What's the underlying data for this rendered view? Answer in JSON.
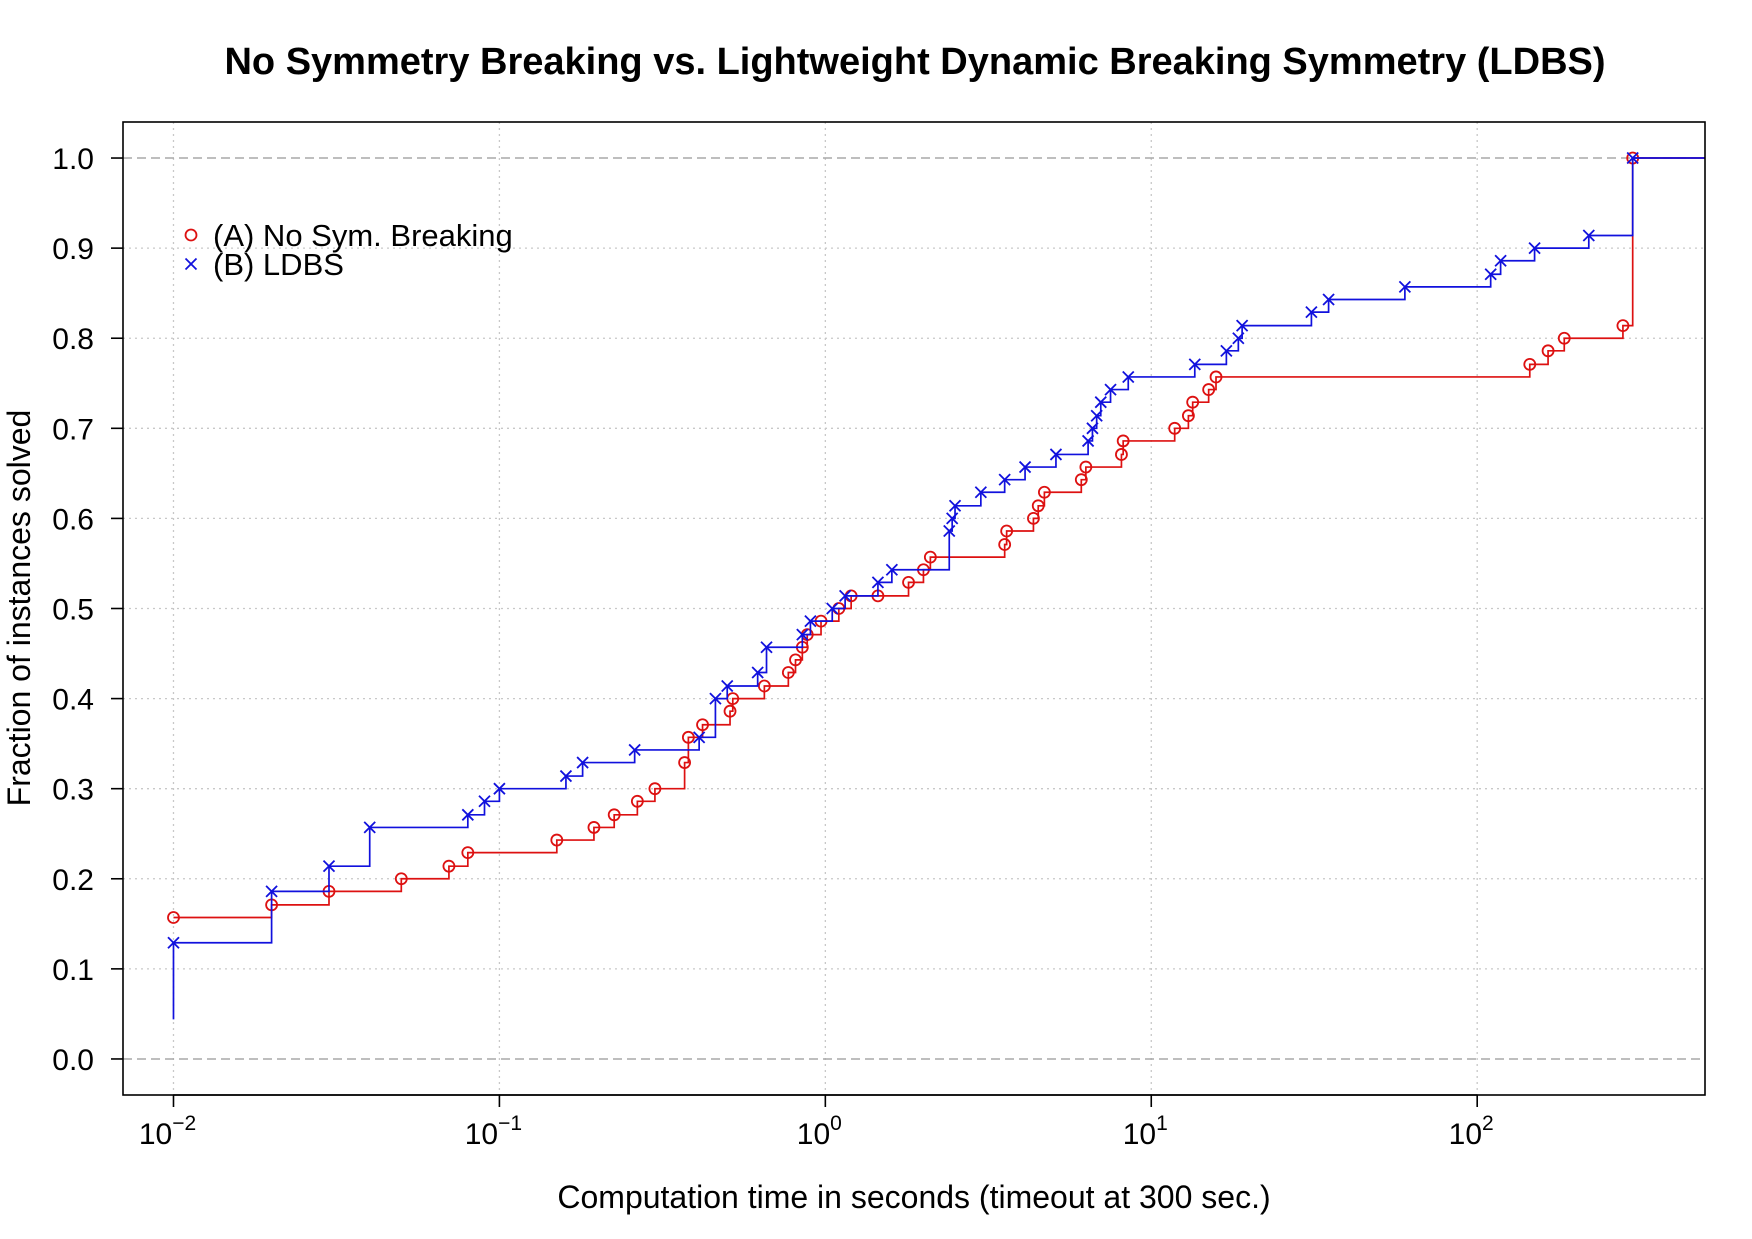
{
  "chart_data": {
    "type": "line",
    "title": "No Symmetry Breaking vs. Lightweight Dynamic Breaking Symmetry (LDBS)",
    "xlabel": "Computation time in seconds (timeout at 300 sec.)",
    "ylabel": "Fraction of instances solved",
    "xscale": "log",
    "xlim": [
      0.007,
      500
    ],
    "ylim": [
      -0.04,
      1.04
    ],
    "x_ticks": [
      {
        "value": 0.01,
        "base": "10",
        "exp": "−2"
      },
      {
        "value": 0.1,
        "base": "10",
        "exp": "−1"
      },
      {
        "value": 1,
        "base": "10",
        "exp": "0"
      },
      {
        "value": 10,
        "base": "10",
        "exp": "1"
      },
      {
        "value": 100,
        "base": "10",
        "exp": "2"
      }
    ],
    "y_ticks": [
      "0.0",
      "0.1",
      "0.2",
      "0.3",
      "0.4",
      "0.5",
      "0.6",
      "0.7",
      "0.8",
      "0.9",
      "1.0"
    ],
    "grid": true,
    "legend_position": "top-left",
    "series": [
      {
        "name": "(A) No Sym. Breaking",
        "marker": "circle",
        "color": "#dd1111",
        "points": [
          [
            0.01,
            0.157
          ],
          [
            0.02,
            0.171
          ],
          [
            0.03,
            0.186
          ],
          [
            0.05,
            0.2
          ],
          [
            0.07,
            0.214
          ],
          [
            0.08,
            0.229
          ],
          [
            0.15,
            0.243
          ],
          [
            0.195,
            0.257
          ],
          [
            0.225,
            0.271
          ],
          [
            0.265,
            0.286
          ],
          [
            0.3,
            0.3
          ],
          [
            0.37,
            0.329
          ],
          [
            0.38,
            0.357
          ],
          [
            0.42,
            0.371
          ],
          [
            0.51,
            0.386
          ],
          [
            0.52,
            0.4
          ],
          [
            0.65,
            0.414
          ],
          [
            0.77,
            0.429
          ],
          [
            0.81,
            0.443
          ],
          [
            0.85,
            0.457
          ],
          [
            0.88,
            0.471
          ],
          [
            0.97,
            0.486
          ],
          [
            1.1,
            0.5
          ],
          [
            1.2,
            0.514
          ],
          [
            1.45,
            0.514
          ],
          [
            1.8,
            0.529
          ],
          [
            2.0,
            0.543
          ],
          [
            2.1,
            0.557
          ],
          [
            3.55,
            0.571
          ],
          [
            3.6,
            0.586
          ],
          [
            4.35,
            0.6
          ],
          [
            4.5,
            0.614
          ],
          [
            4.7,
            0.629
          ],
          [
            6.1,
            0.643
          ],
          [
            6.3,
            0.657
          ],
          [
            8.1,
            0.671
          ],
          [
            8.2,
            0.686
          ],
          [
            11.8,
            0.7
          ],
          [
            13.0,
            0.714
          ],
          [
            13.4,
            0.729
          ],
          [
            15.0,
            0.743
          ],
          [
            15.8,
            0.757
          ],
          [
            145,
            0.771
          ],
          [
            165,
            0.786
          ],
          [
            185,
            0.8
          ],
          [
            280,
            0.814
          ],
          [
            300,
            1.0
          ]
        ]
      },
      {
        "name": "(B) LDBS",
        "marker": "cross",
        "color": "#1111dd",
        "points": [
          [
            0.01,
            0.129
          ],
          [
            0.02,
            0.186
          ],
          [
            0.03,
            0.214
          ],
          [
            0.04,
            0.257
          ],
          [
            0.08,
            0.271
          ],
          [
            0.09,
            0.286
          ],
          [
            0.1,
            0.3
          ],
          [
            0.16,
            0.314
          ],
          [
            0.18,
            0.329
          ],
          [
            0.26,
            0.343
          ],
          [
            0.41,
            0.357
          ],
          [
            0.46,
            0.4
          ],
          [
            0.5,
            0.414
          ],
          [
            0.62,
            0.429
          ],
          [
            0.66,
            0.457
          ],
          [
            0.85,
            0.471
          ],
          [
            0.9,
            0.486
          ],
          [
            1.05,
            0.5
          ],
          [
            1.15,
            0.514
          ],
          [
            1.45,
            0.529
          ],
          [
            1.6,
            0.543
          ],
          [
            2.4,
            0.586
          ],
          [
            2.45,
            0.6
          ],
          [
            2.5,
            0.614
          ],
          [
            3.0,
            0.629
          ],
          [
            3.55,
            0.643
          ],
          [
            4.1,
            0.657
          ],
          [
            5.1,
            0.671
          ],
          [
            6.4,
            0.686
          ],
          [
            6.6,
            0.7
          ],
          [
            6.8,
            0.714
          ],
          [
            7.0,
            0.729
          ],
          [
            7.5,
            0.743
          ],
          [
            8.5,
            0.757
          ],
          [
            13.6,
            0.771
          ],
          [
            17.0,
            0.786
          ],
          [
            18.5,
            0.8
          ],
          [
            19.0,
            0.814
          ],
          [
            31.0,
            0.829
          ],
          [
            35.0,
            0.843
          ],
          [
            60.0,
            0.857
          ],
          [
            110,
            0.871
          ],
          [
            118,
            0.886
          ],
          [
            150,
            0.9
          ],
          [
            220,
            0.914
          ],
          [
            300,
            1.0
          ]
        ]
      }
    ]
  }
}
